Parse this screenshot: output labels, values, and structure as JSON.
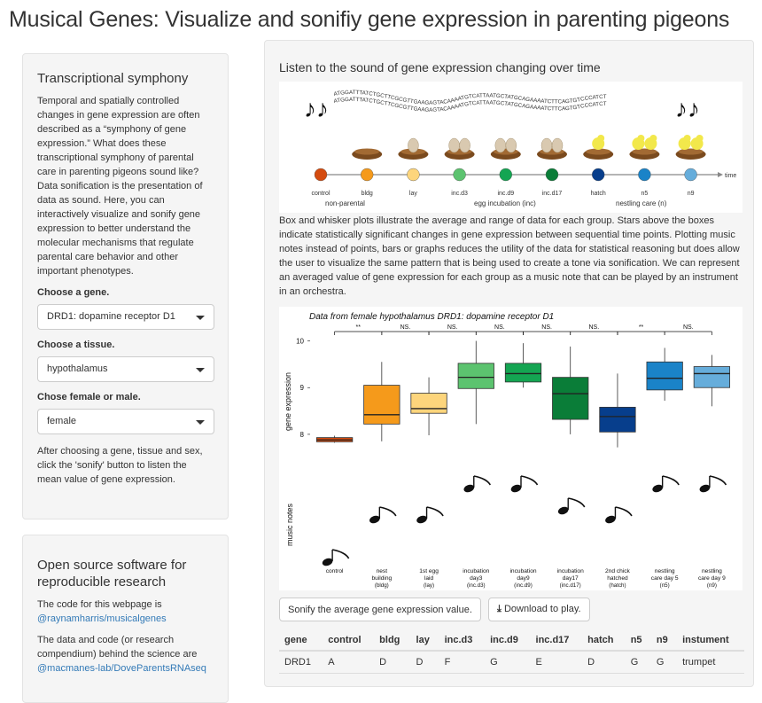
{
  "app": {
    "title": "Musical Genes: Visualize and sonifiy gene expression in parenting pigeons"
  },
  "sidebar1": {
    "heading": "Transcriptional symphony",
    "intro": "Temporal and spatially controlled changes in gene expression are often described as a “symphony of gene expression.” What does these transcriptional symphony of parental care in parenting pigeons sound like? Data sonification is the presentation of data as sound. Here, you can interactively visualize and sonify gene expression to better understand the molecular mechanisms that regulate parental care behavior and other important phenotypes.",
    "gene_label": "Choose a gene.",
    "gene_value": "DRD1: dopamine receptor D1",
    "tissue_label": "Choose a tissue.",
    "tissue_value": "hypothalamus",
    "sex_label": "Chose female or male.",
    "sex_value": "female",
    "instructions": "After choosing a gene, tissue and sex, click the 'sonify' button to listen the mean value of gene expression."
  },
  "sidebar2": {
    "heading": "Open source software for reproducible research",
    "code_text": "The code for this webpage is",
    "code_link": "@raynamharris/musicalgenes",
    "data_text": "The data and code (or research compendium) behind the science are",
    "data_link": "@macmanes-lab/DoveParentsRNAseq"
  },
  "main": {
    "heading": "Listen to the sound of gene expression changing over time",
    "description": "Box and whisker plots illustrate the average and range of data for each group. Stars above the boxes indicate statistically significant changes in gene expression between sequential time points. Plotting music notes instead of points, bars or graphs reduces the utility of the data for statistical reasoning but does allow the user to visualize the same pattern that is being used to create a tone via sonification. We can represent an averaged value of gene expression for each group as a music note that can be played by an instrument in an orchestra.",
    "sonify_button": "Sonify the average gene expression value.",
    "download_button": "Download to play."
  },
  "timeline": {
    "dna_strand_1": "ATGGATTTATCTGCTTCGCGTTGAAGAGTACAAAATGTCATTAATGCTATGCAGAAAATCTTCAGTGTCCCATCT",
    "dna_strand_2": "ATGGATTTATCTGCTTCGCGTTGAAGAGTACAAAATGTCATTAATGCTATGCAGAAAATCTTCAGTGTCCCATCT",
    "axis_end": "time",
    "stages": [
      {
        "label": "control",
        "color": "#d44b0f"
      },
      {
        "label": "bldg",
        "color": "#f59a1b"
      },
      {
        "label": "lay",
        "color": "#fdd57c"
      },
      {
        "label": "inc.d3",
        "color": "#5cc36f"
      },
      {
        "label": "inc.d9",
        "color": "#14a552"
      },
      {
        "label": "inc.d17",
        "color": "#0a7d38"
      },
      {
        "label": "hatch",
        "color": "#073e8c"
      },
      {
        "label": "n5",
        "color": "#1a83c8"
      },
      {
        "label": "n9",
        "color": "#66addb"
      }
    ],
    "group_non_parental": "non-parental",
    "group_incubation": "egg incubation (inc)",
    "group_nestling": "nestling care (n)"
  },
  "chart_data": {
    "type": "box",
    "title": "Data from female hypothalamus DRD1: dopamine receptor D1",
    "ylabel": "gene expression",
    "ylabel2": "music notes",
    "ylim": [
      7.6,
      10.2
    ],
    "yticks": [
      8,
      9,
      10
    ],
    "categories": [
      {
        "name": "control",
        "tick1": "control",
        "tick2": "",
        "tick3": "",
        "color": "#d44b0f",
        "stats": {
          "min": 7.82,
          "q1": 7.84,
          "median": 7.88,
          "q3": 7.93,
          "max": 7.97
        },
        "note": "A"
      },
      {
        "name": "bldg",
        "tick1": "nest",
        "tick2": "building",
        "tick3": "(bldg)",
        "color": "#f59a1b",
        "stats": {
          "min": 7.85,
          "q1": 8.22,
          "median": 8.42,
          "q3": 9.05,
          "max": 9.55
        },
        "note": "D"
      },
      {
        "name": "lay",
        "tick1": "1st egg",
        "tick2": "laid",
        "tick3": "(lay)",
        "color": "#fdd57c",
        "stats": {
          "min": 7.98,
          "q1": 8.45,
          "median": 8.55,
          "q3": 8.88,
          "max": 9.22
        },
        "note": "D"
      },
      {
        "name": "inc.d3",
        "tick1": "incubation",
        "tick2": "day3",
        "tick3": "(inc.d3)",
        "color": "#5cc36f",
        "stats": {
          "min": 8.22,
          "q1": 8.98,
          "median": 9.22,
          "q3": 9.52,
          "max": 10.0
        },
        "note": "F"
      },
      {
        "name": "inc.d9",
        "tick1": "incubation",
        "tick2": "day9",
        "tick3": "(inc.d9)",
        "color": "#14a552",
        "stats": {
          "min": 9.0,
          "q1": 9.12,
          "median": 9.3,
          "q3": 9.52,
          "max": 9.95
        },
        "note": "G"
      },
      {
        "name": "inc.d17",
        "tick1": "incubation",
        "tick2": "day17",
        "tick3": "(inc.d17)",
        "color": "#0a7d38",
        "stats": {
          "min": 8.0,
          "q1": 8.32,
          "median": 8.87,
          "q3": 9.22,
          "max": 9.88
        },
        "note": "E"
      },
      {
        "name": "hatch",
        "tick1": "2nd chick",
        "tick2": "hatched",
        "tick3": "(hatch)",
        "color": "#073e8c",
        "stats": {
          "min": 7.72,
          "q1": 8.05,
          "median": 8.38,
          "q3": 8.58,
          "max": 9.3
        },
        "note": "D"
      },
      {
        "name": "n5",
        "tick1": "nestling",
        "tick2": "care day 5",
        "tick3": "(n5)",
        "color": "#1a83c8",
        "stats": {
          "min": 8.72,
          "q1": 8.95,
          "median": 9.2,
          "q3": 9.55,
          "max": 9.85
        },
        "note": "G"
      },
      {
        "name": "n9",
        "tick1": "nestling",
        "tick2": "care day 9",
        "tick3": "(n9)",
        "color": "#66addb",
        "stats": {
          "min": 8.6,
          "q1": 9.0,
          "median": 9.3,
          "q3": 9.45,
          "max": 9.7
        },
        "note": "G"
      }
    ],
    "significance": [
      "**",
      "NS.",
      "NS.",
      "NS.",
      "NS.",
      "NS.",
      "**",
      "NS."
    ],
    "note_levels": {
      "A": 0,
      "D": 1,
      "E": 2,
      "F": 3,
      "G": 3
    }
  },
  "table": {
    "headers": [
      "gene",
      "control",
      "bldg",
      "lay",
      "inc.d3",
      "inc.d9",
      "inc.d17",
      "hatch",
      "n5",
      "n9",
      "instument"
    ],
    "rows": [
      [
        "DRD1",
        "A",
        "D",
        "D",
        "F",
        "G",
        "E",
        "D",
        "G",
        "G",
        "trumpet"
      ]
    ]
  }
}
